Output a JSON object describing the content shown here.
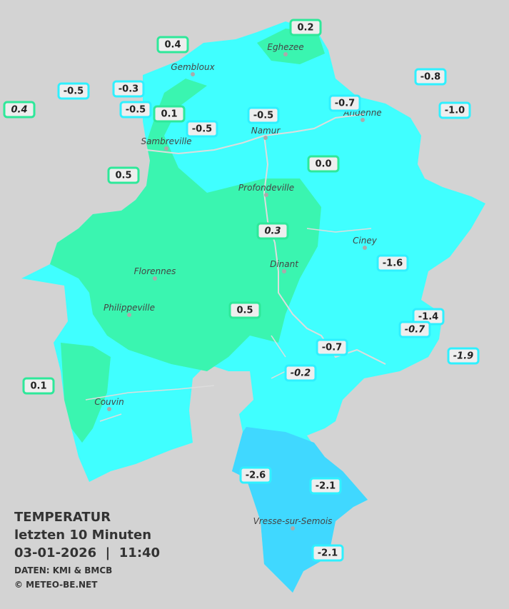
{
  "map": {
    "stations": [
      "0.2",
      "0.4",
      "-0.8",
      "-0.5",
      "-0.3",
      "-0.7",
      "0.4",
      "-0.5",
      "0.1",
      "-0.5",
      "-1.0",
      "-0.5",
      "0.5",
      "0.0",
      "0.3",
      "-1.6",
      "-1.4",
      "-0.7",
      "0.5",
      "-0.7",
      "-1.9",
      "-0.2",
      "0.1",
      "-2.6",
      "-2.1",
      "-2.1"
    ],
    "cities": [
      "Eghezee",
      "Gembloux",
      "Andenne",
      "Namur",
      "Sambreville",
      "Profondeville",
      "Ciney",
      "Florennes",
      "Dinant",
      "Philippeville",
      "Couvin",
      "Vresse-sur-Semois"
    ]
  },
  "legend": {
    "title": "TEMPERATUR",
    "period": "letzten 10 Minuten",
    "datetime": "03-01-2026  |  11:40",
    "source": "DATEN: KMI & BMCB",
    "copyright": "© METEO-BE.NET"
  }
}
